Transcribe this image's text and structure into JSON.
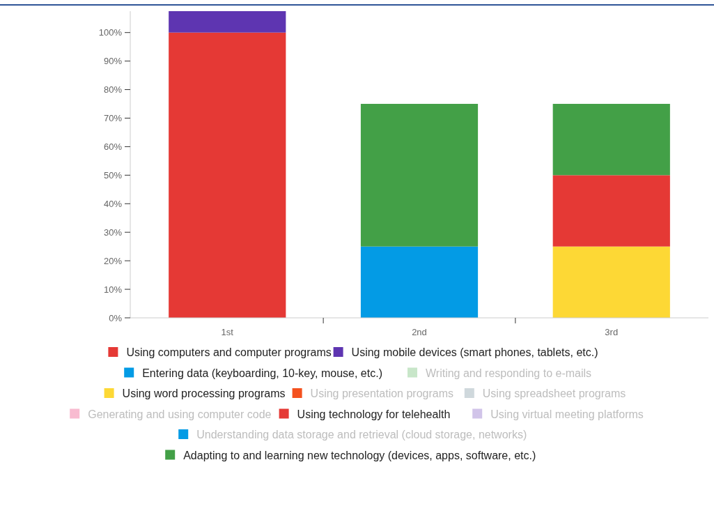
{
  "chart_data": {
    "type": "bar",
    "stacked": true,
    "categories": [
      "1st",
      "2nd",
      "3rd"
    ],
    "series": [
      {
        "name": "Using computers and computer programs",
        "color": "#e53935",
        "values": [
          100,
          null,
          null
        ]
      },
      {
        "name": "Using mobile devices (smart phones, tablets, etc.)",
        "color": "#5e35b1",
        "values": [
          7.5,
          null,
          null
        ]
      },
      {
        "name": "Entering data (keyboarding, 10-key, mouse, etc.)",
        "color": "#039be5",
        "values": [
          null,
          25,
          null
        ]
      },
      {
        "name": "Writing and responding to e-mails",
        "color": "#c8e6c9",
        "values": [
          null,
          null,
          null
        ]
      },
      {
        "name": "Using word processing programs",
        "color": "#fdd835",
        "values": [
          null,
          null,
          25
        ]
      },
      {
        "name": "Using presentation programs",
        "color": "#f4511e",
        "values": [
          null,
          null,
          null
        ]
      },
      {
        "name": "Using spreadsheet programs",
        "color": "#cfd8dc",
        "values": [
          null,
          null,
          null
        ]
      },
      {
        "name": "Generating and using computer code",
        "color": "#f8bbd0",
        "values": [
          null,
          null,
          null
        ]
      },
      {
        "name": "Using technology for telehealth",
        "color": "#e53935",
        "values": [
          null,
          null,
          25
        ]
      },
      {
        "name": "Using virtual meeting platforms",
        "color": "#d1c4e9",
        "values": [
          null,
          null,
          null
        ]
      },
      {
        "name": "Understanding data storage and retrieval (cloud storage, networks)",
        "color": "#039be5",
        "values": [
          null,
          null,
          null
        ]
      },
      {
        "name": "Adapting to and learning new technology (devices, apps, software, etc.)",
        "color": "#43a047",
        "values": [
          null,
          50,
          25
        ]
      }
    ],
    "ylim": [
      0,
      107.5
    ],
    "yticks": [
      {
        "value": 0,
        "label": "0%"
      },
      {
        "value": 10,
        "label": "10%"
      },
      {
        "value": 20,
        "label": "20%"
      },
      {
        "value": 30,
        "label": "30%"
      },
      {
        "value": 40,
        "label": "40%"
      },
      {
        "value": 50,
        "label": "50%"
      },
      {
        "value": 60,
        "label": "60%"
      },
      {
        "value": 70,
        "label": "70%"
      },
      {
        "value": 80,
        "label": "80%"
      },
      {
        "value": 90,
        "label": "90%"
      },
      {
        "value": 100,
        "label": "100%"
      }
    ],
    "grid": false,
    "legend": "bottom"
  }
}
